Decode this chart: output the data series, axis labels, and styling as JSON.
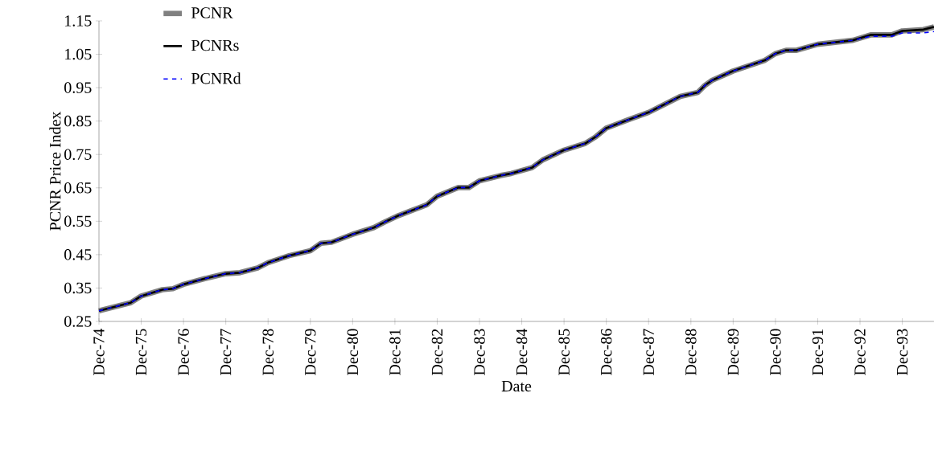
{
  "chart_data": {
    "type": "line",
    "xlabel": "Date",
    "ylabel": "PCNR  Price Index",
    "x": [
      "1974-12",
      "1975-09",
      "1975-12",
      "1976-06",
      "1976-09",
      "1976-12",
      "1977-06",
      "1977-12",
      "1978-04",
      "1978-09",
      "1978-12",
      "1979-06",
      "1979-12",
      "1980-03",
      "1980-06",
      "1980-12",
      "1981-06",
      "1981-09",
      "1982-01",
      "1982-09",
      "1982-12",
      "1983-06",
      "1983-09",
      "1983-12",
      "1984-06",
      "1984-09",
      "1985-03",
      "1985-06",
      "1985-12",
      "1986-06",
      "1986-09",
      "1986-12",
      "1987-06",
      "1987-12",
      "1988-03",
      "1988-09",
      "1989-02",
      "1989-04",
      "1989-06",
      "1989-12",
      "1990-09",
      "1990-12",
      "1991-03",
      "1991-06",
      "1991-12",
      "1992-10",
      "1993-03",
      "1993-09",
      "1993-12",
      "1994-06",
      "1994-09"
    ],
    "series": [
      {
        "name": "PCNR",
        "color": "#808080",
        "line_style": "solid",
        "values": [
          0.282,
          0.306,
          0.326,
          0.345,
          0.348,
          0.361,
          0.378,
          0.393,
          0.396,
          0.41,
          0.426,
          0.447,
          0.462,
          0.484,
          0.487,
          0.511,
          0.531,
          0.547,
          0.567,
          0.599,
          0.625,
          0.651,
          0.651,
          0.671,
          0.687,
          0.693,
          0.711,
          0.734,
          0.763,
          0.783,
          0.803,
          0.829,
          0.853,
          0.876,
          0.892,
          0.924,
          0.936,
          0.957,
          0.972,
          1.0,
          1.032,
          1.052,
          1.062,
          1.062,
          1.08,
          1.092,
          1.108,
          1.108,
          1.12,
          1.124,
          1.132
        ]
      },
      {
        "name": "PCNRs",
        "color": "#000000",
        "line_style": "solid",
        "values": [
          0.282,
          0.306,
          0.326,
          0.345,
          0.348,
          0.361,
          0.378,
          0.393,
          0.396,
          0.41,
          0.426,
          0.447,
          0.462,
          0.484,
          0.487,
          0.511,
          0.531,
          0.547,
          0.567,
          0.599,
          0.625,
          0.651,
          0.651,
          0.671,
          0.687,
          0.693,
          0.711,
          0.734,
          0.763,
          0.783,
          0.803,
          0.829,
          0.853,
          0.876,
          0.892,
          0.924,
          0.936,
          0.957,
          0.972,
          1.0,
          1.032,
          1.052,
          1.062,
          1.062,
          1.08,
          1.092,
          1.108,
          1.108,
          1.12,
          1.124,
          1.132
        ]
      },
      {
        "name": "PCNRd",
        "color": "#0000ff",
        "line_style": "dashed",
        "values": [
          0.282,
          0.306,
          0.326,
          0.345,
          0.348,
          0.361,
          0.378,
          0.393,
          0.396,
          0.41,
          0.426,
          0.447,
          0.462,
          0.484,
          0.487,
          0.511,
          0.531,
          0.547,
          0.567,
          0.599,
          0.625,
          0.651,
          0.651,
          0.671,
          0.687,
          0.693,
          0.711,
          0.734,
          0.763,
          0.783,
          0.803,
          0.829,
          0.853,
          0.876,
          0.892,
          0.924,
          0.936,
          0.957,
          0.972,
          1.0,
          1.032,
          1.052,
          1.062,
          1.062,
          1.08,
          1.092,
          1.104,
          1.104,
          1.114,
          1.114,
          1.118
        ]
      }
    ],
    "xlim": [
      "1974-12",
      "1994-09"
    ],
    "xticks": [
      {
        "value": "1974-12",
        "label": "Dec-74"
      },
      {
        "value": "1975-12",
        "label": "Dec-75"
      },
      {
        "value": "1976-12",
        "label": "Dec-76"
      },
      {
        "value": "1977-12",
        "label": "Dec-77"
      },
      {
        "value": "1978-12",
        "label": "Dec-78"
      },
      {
        "value": "1979-12",
        "label": "Dec-79"
      },
      {
        "value": "1980-12",
        "label": "Dec-80"
      },
      {
        "value": "1981-12",
        "label": "Dec-81"
      },
      {
        "value": "1982-12",
        "label": "Dec-82"
      },
      {
        "value": "1983-12",
        "label": "Dec-83"
      },
      {
        "value": "1984-12",
        "label": "Dec-84"
      },
      {
        "value": "1985-12",
        "label": "Dec-85"
      },
      {
        "value": "1986-12",
        "label": "Dec-86"
      },
      {
        "value": "1987-12",
        "label": "Dec-87"
      },
      {
        "value": "1988-12",
        "label": "Dec-88"
      },
      {
        "value": "1989-12",
        "label": "Dec-89"
      },
      {
        "value": "1990-12",
        "label": "Dec-90"
      },
      {
        "value": "1991-12",
        "label": "Dec-91"
      },
      {
        "value": "1992-12",
        "label": "Dec-92"
      },
      {
        "value": "1993-12",
        "label": "Dec-93"
      }
    ],
    "ylim": [
      0.25,
      1.15
    ],
    "yticks": [
      0.25,
      0.35,
      0.45,
      0.55,
      0.65,
      0.75,
      0.85,
      0.95,
      1.05,
      1.15
    ],
    "grid": false,
    "legend": "top left",
    "marker": "none"
  }
}
